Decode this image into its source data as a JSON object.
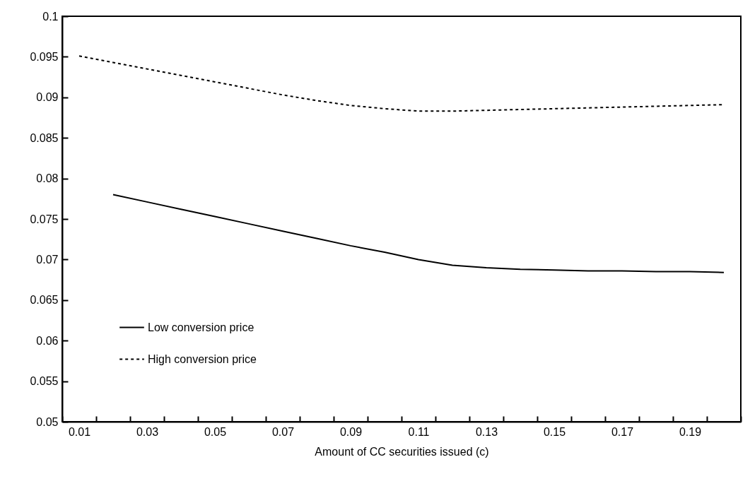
{
  "chart_data": {
    "type": "line",
    "xlabel": "Amount of CC securities issued (c)",
    "categories": [
      "0.01",
      null,
      "0.03",
      null,
      "0.05",
      null,
      "0.07",
      null,
      "0.09",
      null,
      "0.11",
      null,
      "0.13",
      null,
      "0.15",
      null,
      "0.17",
      null,
      "0.19",
      null
    ],
    "series": [
      {
        "name": "Low conversion price",
        "color": "#000000",
        "line_style": "solid",
        "values": [
          null,
          0.078,
          0.0771,
          0.0762,
          0.0753,
          0.0744,
          0.0735,
          0.0726,
          0.0717,
          0.0709,
          0.07,
          0.0693,
          0.069,
          0.0688,
          0.0687,
          0.0686,
          0.0686,
          0.0685,
          0.0685,
          0.0684
        ]
      },
      {
        "name": "High conversion price",
        "color": "#000000",
        "line_style": "dotted",
        "values": [
          0.0951,
          0.0943,
          0.0935,
          0.0927,
          0.0919,
          0.0911,
          0.0903,
          0.0896,
          0.089,
          0.0886,
          0.0883,
          0.0883,
          0.0884,
          0.0885,
          0.0886,
          0.0887,
          0.0888,
          0.0889,
          0.089,
          0.0891
        ]
      }
    ],
    "ylim": [
      0.05,
      0.1
    ],
    "yticks": [
      0.05,
      0.055,
      0.06,
      0.065,
      0.07,
      0.075,
      0.08,
      0.085,
      0.09,
      0.095,
      0.1
    ],
    "grid": false,
    "legend": "bottom left",
    "marker": "none"
  }
}
